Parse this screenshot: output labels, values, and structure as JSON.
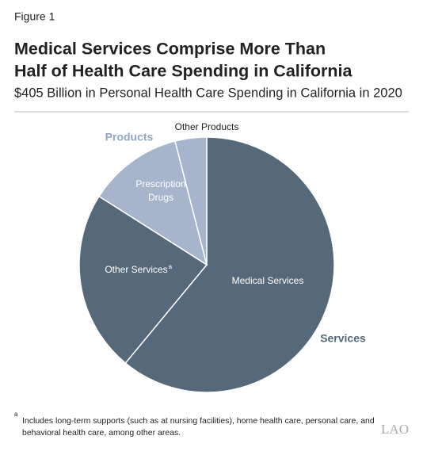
{
  "chart_data": {
    "type": "pie",
    "figure_label": "Figure 1",
    "title": [
      "Medical Services Comprise More Than",
      "Half of Health Care Spending in California"
    ],
    "subtitle": "$405 Billion in Personal Health Care Spending in California in 2020",
    "categories": [
      "Medical Services",
      "Other Services",
      "Prescription Drugs",
      "Other Products"
    ],
    "values": [
      61,
      23,
      12,
      4
    ],
    "colors": [
      "#56697a",
      "#56697a",
      "#a6b5cb",
      "#a6b5cb"
    ],
    "groups": [
      {
        "name": "Services",
        "color": "#56697a"
      },
      {
        "name": "Products",
        "color": "#94a7c2"
      }
    ],
    "note_marker": "a",
    "footnote": [
      "Includes long-term supports (such as at nursing facilities), home health care, personal care, and",
      "behavioral health care, among other areas."
    ],
    "logo": "LAO"
  }
}
